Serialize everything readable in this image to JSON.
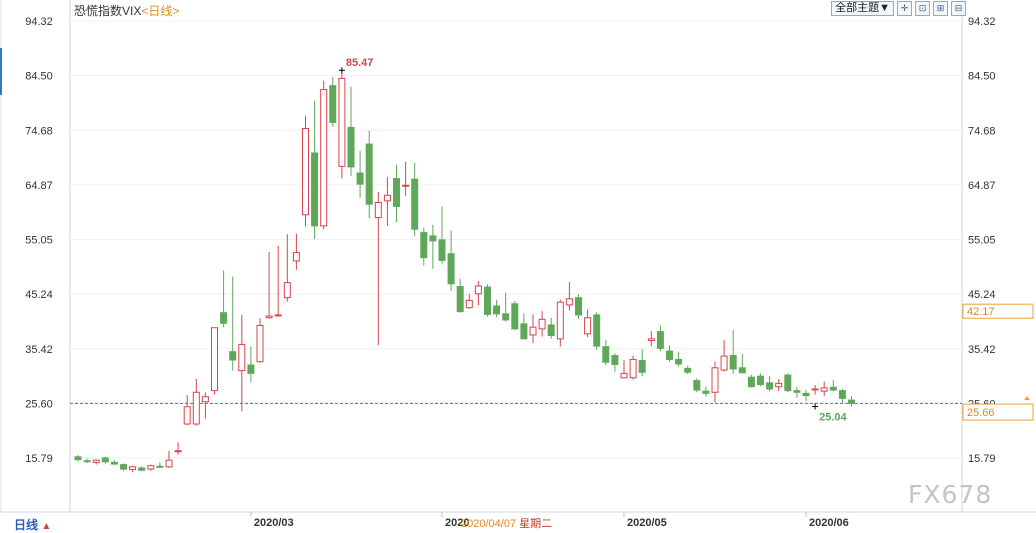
{
  "title": "恐慌指数VIX",
  "period_tag": "<日线>",
  "toolbar": {
    "theme_label": "全部主题",
    "theme_arrow": "▼",
    "icons": [
      "crosshair-icon",
      "fit-icon",
      "zoom-in-icon",
      "zoom-out-icon"
    ]
  },
  "period_label": "日线",
  "period_arrow": "▲",
  "watermark": "FX678",
  "crosshair_date": "2020/04/07",
  "crosshair_weekday": "星期二",
  "colors": {
    "up": "#d8444c",
    "down": "#5fa85a",
    "ref_line": "#3a78c2",
    "current_box": "#f0a030"
  },
  "chart_data": {
    "type": "candlestick",
    "ylim": [
      9.0,
      95.5
    ],
    "y_ticks": [
      "94.32",
      "84.50",
      "74.68",
      "64.87",
      "55.05",
      "45.24",
      "35.42",
      "25.60",
      "15.79"
    ],
    "x_ticks": [
      {
        "i": 19,
        "label": "2020/03"
      },
      {
        "i": 40,
        "label": "2020"
      },
      {
        "i": 60,
        "label": "2020/05"
      },
      {
        "i": 80,
        "label": "2020/06"
      }
    ],
    "reference_line": 25.6,
    "current_value": "25.66",
    "crosshair_value": "42.17",
    "crosshair_y": 42.17,
    "annotations": [
      {
        "i": 29,
        "text": "85.47",
        "value": 85.47,
        "color": "#d8444c"
      },
      {
        "i": 81,
        "text": "25.04",
        "value": 25.04,
        "color": "#5fa85a"
      }
    ],
    "candles": [
      {
        "o": 16.0,
        "h": 16.3,
        "l": 15.2,
        "c": 15.5
      },
      {
        "o": 15.3,
        "h": 15.7,
        "l": 14.9,
        "c": 15.2
      },
      {
        "o": 15.0,
        "h": 15.5,
        "l": 14.6,
        "c": 15.4
      },
      {
        "o": 15.8,
        "h": 16.0,
        "l": 14.8,
        "c": 15.1
      },
      {
        "o": 15.0,
        "h": 15.4,
        "l": 14.5,
        "c": 14.7
      },
      {
        "o": 14.6,
        "h": 14.8,
        "l": 13.5,
        "c": 13.8
      },
      {
        "o": 13.7,
        "h": 14.4,
        "l": 13.3,
        "c": 14.2
      },
      {
        "o": 14.0,
        "h": 14.3,
        "l": 13.4,
        "c": 13.6
      },
      {
        "o": 13.8,
        "h": 14.6,
        "l": 13.5,
        "c": 14.4
      },
      {
        "o": 14.3,
        "h": 15.0,
        "l": 14.0,
        "c": 14.2
      },
      {
        "o": 14.2,
        "h": 17.1,
        "l": 14.0,
        "c": 15.4
      },
      {
        "o": 17.0,
        "h": 18.6,
        "l": 16.4,
        "c": 17.1
      },
      {
        "o": 21.9,
        "h": 27.1,
        "l": 21.7,
        "c": 25.0
      },
      {
        "o": 21.9,
        "h": 30.0,
        "l": 21.6,
        "c": 27.6
      },
      {
        "o": 25.9,
        "h": 27.6,
        "l": 22.9,
        "c": 26.8
      },
      {
        "o": 27.9,
        "h": 39.2,
        "l": 27.2,
        "c": 39.2
      },
      {
        "o": 41.9,
        "h": 49.5,
        "l": 39.3,
        "c": 40.0
      },
      {
        "o": 34.9,
        "h": 48.4,
        "l": 31.5,
        "c": 33.4
      },
      {
        "o": 31.5,
        "h": 41.5,
        "l": 24.2,
        "c": 36.2
      },
      {
        "o": 32.5,
        "h": 35.8,
        "l": 29.4,
        "c": 31.0
      },
      {
        "o": 33.1,
        "h": 40.9,
        "l": 32.9,
        "c": 39.6
      },
      {
        "o": 41.0,
        "h": 52.8,
        "l": 40.8,
        "c": 41.3
      },
      {
        "o": 41.4,
        "h": 53.9,
        "l": 41.2,
        "c": 41.5
      },
      {
        "o": 44.6,
        "h": 56.0,
        "l": 43.9,
        "c": 47.3
      },
      {
        "o": 51.2,
        "h": 56.1,
        "l": 49.6,
        "c": 52.7
      },
      {
        "o": 59.5,
        "h": 77.3,
        "l": 57.4,
        "c": 75.0
      },
      {
        "o": 70.6,
        "h": 80.0,
        "l": 55.1,
        "c": 57.5
      },
      {
        "o": 57.5,
        "h": 83.6,
        "l": 56.9,
        "c": 82.0
      },
      {
        "o": 82.7,
        "h": 84.3,
        "l": 75.3,
        "c": 76.1
      },
      {
        "o": 68.2,
        "h": 85.47,
        "l": 66.0,
        "c": 84.0
      },
      {
        "o": 75.2,
        "h": 82.5,
        "l": 66.5,
        "c": 68.1
      },
      {
        "o": 67.0,
        "h": 71.0,
        "l": 62.5,
        "c": 65.0
      },
      {
        "o": 72.2,
        "h": 74.6,
        "l": 58.9,
        "c": 61.4
      },
      {
        "o": 59.0,
        "h": 63.6,
        "l": 36.1,
        "c": 61.7
      },
      {
        "o": 62.0,
        "h": 66.3,
        "l": 57.5,
        "c": 63.0
      },
      {
        "o": 66.0,
        "h": 68.5,
        "l": 58.2,
        "c": 61.0
      },
      {
        "o": 64.7,
        "h": 69.0,
        "l": 62.9,
        "c": 64.8
      },
      {
        "o": 65.9,
        "h": 68.8,
        "l": 55.6,
        "c": 56.9
      },
      {
        "o": 56.3,
        "h": 57.2,
        "l": 50.4,
        "c": 51.8
      },
      {
        "o": 55.7,
        "h": 57.7,
        "l": 49.8,
        "c": 54.8
      },
      {
        "o": 55.0,
        "h": 61.0,
        "l": 50.7,
        "c": 51.3
      },
      {
        "o": 52.5,
        "h": 56.7,
        "l": 45.8,
        "c": 47.1
      },
      {
        "o": 46.6,
        "h": 48.0,
        "l": 41.9,
        "c": 42.1
      },
      {
        "o": 42.8,
        "h": 45.3,
        "l": 42.6,
        "c": 44.1
      },
      {
        "o": 45.3,
        "h": 47.6,
        "l": 43.2,
        "c": 46.7
      },
      {
        "o": 46.5,
        "h": 47.0,
        "l": 41.2,
        "c": 41.6
      },
      {
        "o": 43.1,
        "h": 44.2,
        "l": 41.1,
        "c": 41.7
      },
      {
        "o": 41.7,
        "h": 45.5,
        "l": 40.3,
        "c": 40.6
      },
      {
        "o": 43.5,
        "h": 44.0,
        "l": 38.8,
        "c": 39.0
      },
      {
        "o": 39.9,
        "h": 41.8,
        "l": 37.2,
        "c": 37.2
      },
      {
        "o": 37.9,
        "h": 41.6,
        "l": 36.4,
        "c": 39.3
      },
      {
        "o": 39.0,
        "h": 42.2,
        "l": 37.6,
        "c": 40.7
      },
      {
        "o": 39.7,
        "h": 41.0,
        "l": 37.2,
        "c": 37.8
      },
      {
        "o": 37.2,
        "h": 44.2,
        "l": 35.8,
        "c": 43.8
      },
      {
        "o": 43.3,
        "h": 47.4,
        "l": 42.3,
        "c": 44.4
      },
      {
        "o": 44.6,
        "h": 45.2,
        "l": 40.8,
        "c": 41.5
      },
      {
        "o": 38.1,
        "h": 42.5,
        "l": 37.5,
        "c": 41.0
      },
      {
        "o": 41.5,
        "h": 42.0,
        "l": 35.2,
        "c": 35.9
      },
      {
        "o": 35.8,
        "h": 37.0,
        "l": 32.5,
        "c": 33.0
      },
      {
        "o": 34.2,
        "h": 34.6,
        "l": 31.3,
        "c": 32.6
      },
      {
        "o": 30.2,
        "h": 33.4,
        "l": 30.1,
        "c": 31.0
      },
      {
        "o": 30.2,
        "h": 34.2,
        "l": 29.9,
        "c": 33.5
      },
      {
        "o": 33.3,
        "h": 35.4,
        "l": 30.5,
        "c": 31.2
      },
      {
        "o": 36.9,
        "h": 38.6,
        "l": 35.9,
        "c": 37.2
      },
      {
        "o": 38.5,
        "h": 39.6,
        "l": 35.0,
        "c": 35.5
      },
      {
        "o": 35.0,
        "h": 36.0,
        "l": 33.1,
        "c": 33.5
      },
      {
        "o": 33.5,
        "h": 34.9,
        "l": 32.2,
        "c": 32.7
      },
      {
        "o": 31.9,
        "h": 32.4,
        "l": 30.9,
        "c": 31.2
      },
      {
        "o": 29.7,
        "h": 30.1,
        "l": 27.6,
        "c": 28.0
      },
      {
        "o": 27.8,
        "h": 28.6,
        "l": 26.8,
        "c": 27.4
      },
      {
        "o": 27.6,
        "h": 33.1,
        "l": 25.8,
        "c": 32.0
      },
      {
        "o": 31.6,
        "h": 37.0,
        "l": 31.3,
        "c": 34.1
      },
      {
        "o": 34.2,
        "h": 38.8,
        "l": 30.9,
        "c": 31.8
      },
      {
        "o": 32.0,
        "h": 34.5,
        "l": 31.2,
        "c": 31.1
      },
      {
        "o": 30.3,
        "h": 30.8,
        "l": 28.5,
        "c": 28.6
      },
      {
        "o": 30.5,
        "h": 31.0,
        "l": 28.7,
        "c": 29.0
      },
      {
        "o": 29.3,
        "h": 30.5,
        "l": 27.8,
        "c": 28.2
      },
      {
        "o": 28.6,
        "h": 30.0,
        "l": 27.8,
        "c": 29.2
      },
      {
        "o": 30.7,
        "h": 31.0,
        "l": 27.6,
        "c": 27.9
      },
      {
        "o": 27.9,
        "h": 28.6,
        "l": 26.6,
        "c": 27.6
      },
      {
        "o": 27.4,
        "h": 28.0,
        "l": 26.0,
        "c": 27.0
      },
      {
        "o": 28.0,
        "h": 28.9,
        "l": 27.2,
        "c": 28.2
      },
      {
        "o": 27.8,
        "h": 29.5,
        "l": 26.9,
        "c": 28.4
      },
      {
        "o": 28.5,
        "h": 29.8,
        "l": 27.8,
        "c": 28.0
      },
      {
        "o": 27.9,
        "h": 28.2,
        "l": 25.6,
        "c": 26.5
      },
      {
        "o": 26.2,
        "h": 26.9,
        "l": 25.04,
        "c": 25.6
      }
    ]
  }
}
